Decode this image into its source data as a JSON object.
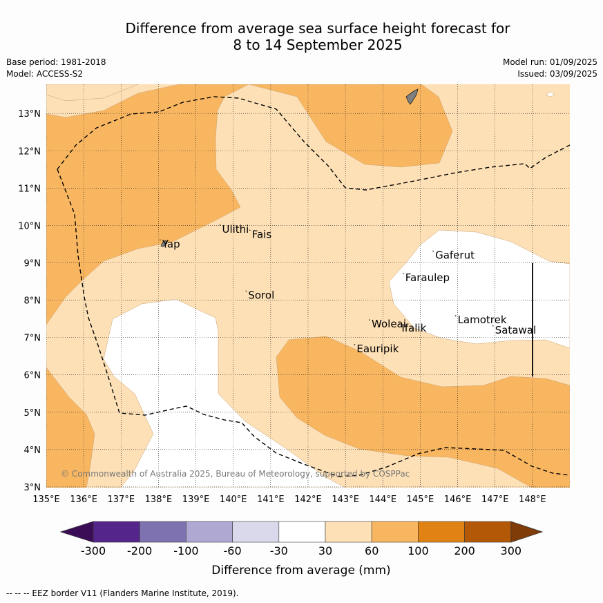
{
  "header": {
    "title_line1": "Difference from average sea surface height forecast for",
    "title_line2": "8 to 14 September 2025",
    "base_period": "Base period: 1981-2018",
    "model": "Model: ACCESS-S2",
    "model_run": "Model run: 01/09/2025",
    "issued": "Issued: 03/09/2025"
  },
  "map": {
    "lon_labels": [
      "135°E",
      "136°E",
      "137°E",
      "138°E",
      "139°E",
      "140°E",
      "141°E",
      "142°E",
      "143°E",
      "144°E",
      "145°E",
      "146°E",
      "147°E",
      "148°E"
    ],
    "lat_labels": [
      "13°N",
      "12°N",
      "11°N",
      "10°N",
      "9°N",
      "8°N",
      "7°N",
      "6°N",
      "5°N",
      "4°N",
      "3°N"
    ],
    "extent": {
      "lon": [
        135,
        149
      ],
      "lat": [
        2.98,
        13.78
      ]
    },
    "places": [
      {
        "name": "Yap",
        "lon": 138.1,
        "lat": 9.5
      },
      {
        "name": "Ulithi",
        "lon": 139.7,
        "lat": 9.9
      },
      {
        "name": "Fais",
        "lon": 140.5,
        "lat": 9.76
      },
      {
        "name": "Gaferut",
        "lon": 145.4,
        "lat": 9.2
      },
      {
        "name": "Faraulep",
        "lon": 144.6,
        "lat": 8.6
      },
      {
        "name": "Sorol",
        "lon": 140.4,
        "lat": 8.13
      },
      {
        "name": "Woleai",
        "lon": 143.7,
        "lat": 7.36
      },
      {
        "name": "Ifalik",
        "lon": 144.5,
        "lat": 7.25
      },
      {
        "name": "Lamotrek",
        "lon": 146.0,
        "lat": 7.47
      },
      {
        "name": "Satawal",
        "lon": 147.0,
        "lat": 7.2
      },
      {
        "name": "Eauripik",
        "lon": 143.3,
        "lat": 6.7
      }
    ],
    "copyright": "© Commonwealth of Australia 2025, Bureau of Meteorology, supported by COSPPac",
    "colors": {
      "band_30_60": "#fde0b6",
      "band_60_100": "#f9b660",
      "band_-30_30": "#ffffff",
      "land": "#7f7f7f"
    }
  },
  "colorbar": {
    "ticks": [
      "-300",
      "-200",
      "-100",
      "-60",
      "-30",
      "30",
      "60",
      "100",
      "200",
      "300"
    ],
    "label": "Difference from average (mm)",
    "colors": [
      "#3b0d57",
      "#54258a",
      "#7e72b0",
      "#aea8d3",
      "#d9d9eb",
      "#ffffff",
      "#fde0b6",
      "#f9b660",
      "#e08214",
      "#b35806",
      "#7f3b08"
    ]
  },
  "footer": {
    "legend": "--  --  -- EEZ border V11 (Flanders Marine Institute, 2019)."
  }
}
